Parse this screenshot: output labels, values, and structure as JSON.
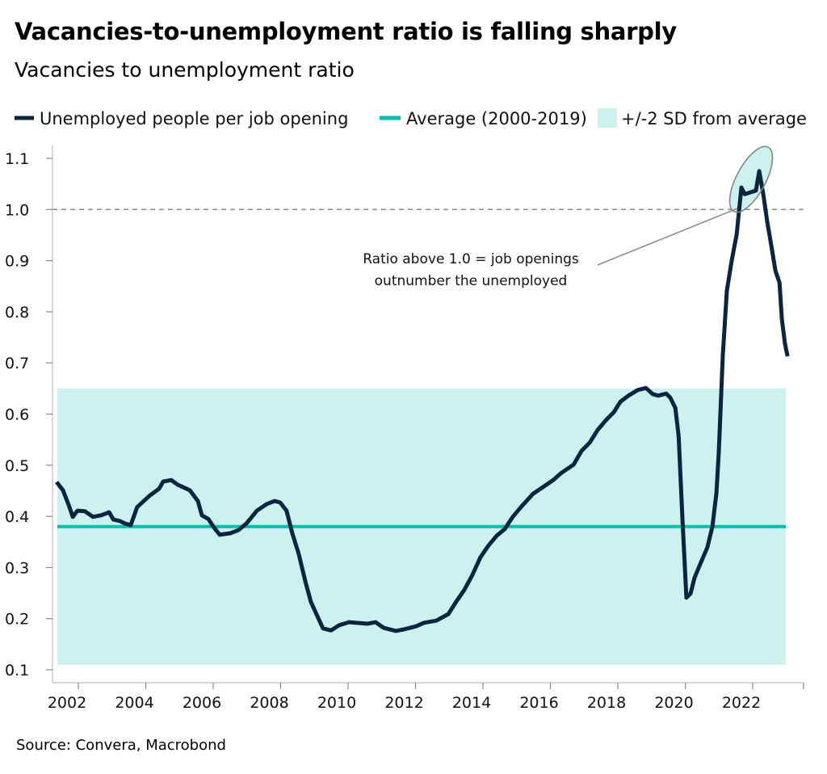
{
  "title": "Vacancies-to-unemployment ratio is falling sharply",
  "subtitle": "Vacancies to unemployment ratio",
  "source": "Source: Convera, Macrobond",
  "legend": [
    {
      "label": "Unemployed people per job opening",
      "color": "#0b2540",
      "kind": "line"
    },
    {
      "label": "Average (2000-2019)",
      "color": "#00c0b0",
      "kind": "line"
    },
    {
      "label": "+/-2 SD from average",
      "color": "#cbf2ef",
      "kind": "box"
    }
  ],
  "chart_data": {
    "type": "line",
    "title": "Vacancies to unemployment ratio",
    "xlabel": "",
    "ylabel": "",
    "xlim": [
      2001.5,
      2024
    ],
    "ylim": [
      0.1,
      1.1
    ],
    "yticks": [
      "0.1",
      "0.2",
      "0.3",
      "0.4",
      "0.5",
      "0.6",
      "0.7",
      "0.8",
      "0.9",
      "1.0",
      "1.1"
    ],
    "xticks": [
      "2002",
      "2004",
      "2006",
      "2008",
      "2010",
      "2012",
      "2014",
      "2016",
      "2018",
      "2020",
      "2022"
    ],
    "grid": false,
    "legend_position": "top",
    "reference_line": {
      "value": 1.0,
      "style": "dashed"
    },
    "average": {
      "name": "Average (2000-2019)",
      "value": 0.38
    },
    "band": {
      "name": "+/-2 SD from average",
      "low": 0.11,
      "high": 0.65
    },
    "annotation": {
      "text_line1": "Ratio above 1.0 = job openings",
      "text_line2": "outnumber the unemployed"
    },
    "series": [
      {
        "name": "Unemployed people per job opening",
        "points": [
          [
            2001.69,
            0.467
          ],
          [
            2001.88,
            0.451
          ],
          [
            2002.05,
            0.422
          ],
          [
            2002.17,
            0.399
          ],
          [
            2002.31,
            0.411
          ],
          [
            2002.53,
            0.41
          ],
          [
            2002.77,
            0.399
          ],
          [
            2003.01,
            0.402
          ],
          [
            2003.25,
            0.408
          ],
          [
            2003.37,
            0.394
          ],
          [
            2003.56,
            0.391
          ],
          [
            2003.72,
            0.386
          ],
          [
            2003.89,
            0.383
          ],
          [
            2004.08,
            0.418
          ],
          [
            2004.44,
            0.44
          ],
          [
            2004.73,
            0.454
          ],
          [
            2004.85,
            0.468
          ],
          [
            2005.09,
            0.471
          ],
          [
            2005.28,
            0.462
          ],
          [
            2005.64,
            0.451
          ],
          [
            2005.88,
            0.43
          ],
          [
            2006.0,
            0.402
          ],
          [
            2006.19,
            0.395
          ],
          [
            2006.36,
            0.378
          ],
          [
            2006.53,
            0.364
          ],
          [
            2006.84,
            0.367
          ],
          [
            2007.08,
            0.373
          ],
          [
            2007.32,
            0.386
          ],
          [
            2007.63,
            0.411
          ],
          [
            2007.92,
            0.424
          ],
          [
            2008.16,
            0.43
          ],
          [
            2008.32,
            0.427
          ],
          [
            2008.51,
            0.411
          ],
          [
            2008.68,
            0.367
          ],
          [
            2008.87,
            0.327
          ],
          [
            2009.07,
            0.272
          ],
          [
            2009.23,
            0.233
          ],
          [
            2009.43,
            0.204
          ],
          [
            2009.59,
            0.181
          ],
          [
            2009.83,
            0.177
          ],
          [
            2010.07,
            0.187
          ],
          [
            2010.36,
            0.193
          ],
          [
            2010.55,
            0.192
          ],
          [
            2010.91,
            0.19
          ],
          [
            2011.15,
            0.193
          ],
          [
            2011.39,
            0.182
          ],
          [
            2011.75,
            0.176
          ],
          [
            2011.99,
            0.179
          ],
          [
            2012.35,
            0.185
          ],
          [
            2012.59,
            0.192
          ],
          [
            2012.95,
            0.196
          ],
          [
            2013.31,
            0.209
          ],
          [
            2013.54,
            0.233
          ],
          [
            2013.78,
            0.256
          ],
          [
            2014.02,
            0.285
          ],
          [
            2014.26,
            0.32
          ],
          [
            2014.5,
            0.343
          ],
          [
            2014.74,
            0.362
          ],
          [
            2014.98,
            0.375
          ],
          [
            2015.22,
            0.399
          ],
          [
            2015.46,
            0.418
          ],
          [
            2015.82,
            0.444
          ],
          [
            2016.11,
            0.457
          ],
          [
            2016.42,
            0.471
          ],
          [
            2016.66,
            0.485
          ],
          [
            2017.02,
            0.501
          ],
          [
            2017.26,
            0.528
          ],
          [
            2017.5,
            0.544
          ],
          [
            2017.74,
            0.569
          ],
          [
            2017.98,
            0.588
          ],
          [
            2018.22,
            0.604
          ],
          [
            2018.41,
            0.624
          ],
          [
            2018.65,
            0.636
          ],
          [
            2018.93,
            0.647
          ],
          [
            2019.17,
            0.651
          ],
          [
            2019.37,
            0.639
          ],
          [
            2019.53,
            0.636
          ],
          [
            2019.77,
            0.64
          ],
          [
            2019.89,
            0.632
          ],
          [
            2020.04,
            0.612
          ],
          [
            2020.14,
            0.557
          ],
          [
            2020.25,
            0.399
          ],
          [
            2020.37,
            0.241
          ],
          [
            2020.49,
            0.249
          ],
          [
            2020.61,
            0.28
          ],
          [
            2020.8,
            0.31
          ],
          [
            2020.99,
            0.339
          ],
          [
            2021.14,
            0.38
          ],
          [
            2021.26,
            0.446
          ],
          [
            2021.33,
            0.525
          ],
          [
            2021.45,
            0.715
          ],
          [
            2021.57,
            0.841
          ],
          [
            2021.71,
            0.899
          ],
          [
            2021.86,
            0.952
          ],
          [
            2022.0,
            1.043
          ],
          [
            2022.1,
            1.03
          ],
          [
            2022.29,
            1.034
          ],
          [
            2022.43,
            1.037
          ],
          [
            2022.53,
            1.075
          ],
          [
            2022.65,
            1.03
          ],
          [
            2022.77,
            0.975
          ],
          [
            2022.89,
            0.928
          ],
          [
            2023.01,
            0.88
          ],
          [
            2023.13,
            0.857
          ],
          [
            2023.2,
            0.786
          ],
          [
            2023.29,
            0.738
          ],
          [
            2023.37,
            0.713
          ]
        ]
      }
    ]
  }
}
